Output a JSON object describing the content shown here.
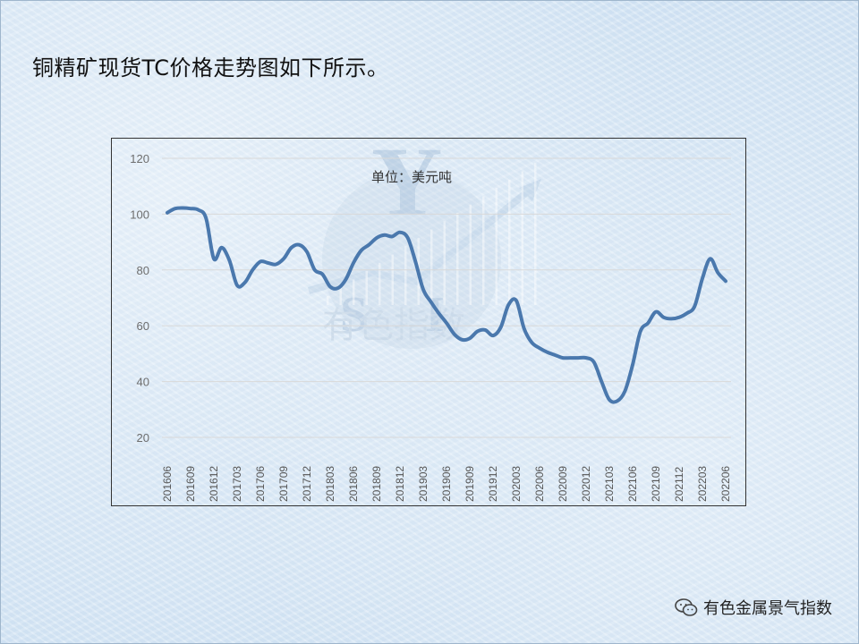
{
  "heading": "铜精矿现货TC价格走势图如下所示。",
  "footer": {
    "text": "有色金属景气指数",
    "icon": "wechat-icon"
  },
  "watermark": {
    "logo": "YSI",
    "text": "有色指数"
  },
  "colors": {
    "line": "#4a78ad",
    "grid": "#d9d9d9",
    "background": "#d6e6f5"
  },
  "chart_data": {
    "type": "line",
    "title": "",
    "unit_label": "单位：美元吨",
    "xlabel": "",
    "ylabel": "",
    "ylim": [
      20,
      120
    ],
    "yticks": [
      20,
      40,
      60,
      80,
      100,
      120
    ],
    "grid": true,
    "x_tick_labels": [
      "201606",
      "201609",
      "201612",
      "201703",
      "201706",
      "201709",
      "201712",
      "201803",
      "201806",
      "201809",
      "201812",
      "201903",
      "201906",
      "201909",
      "201912",
      "202003",
      "202006",
      "202009",
      "202012",
      "202103",
      "202106",
      "202109",
      "202112",
      "202203",
      "202206"
    ],
    "series": [
      {
        "values": [
          100.5,
          102.0,
          102.2,
          102.0,
          101.5,
          98.5,
          84.0,
          88.0,
          83.5,
          74.5,
          75.5,
          80.0,
          83.0,
          82.5,
          82.0,
          84.0,
          88.0,
          89.0,
          86.5,
          80.0,
          78.5,
          74.0,
          73.5,
          76.5,
          82.5,
          87.0,
          89.0,
          91.5,
          92.5,
          92.0,
          93.5,
          91.5,
          83.0,
          73.0,
          68.5,
          64.5,
          61.0,
          57.0,
          55.0,
          55.5,
          58.0,
          58.5,
          56.5,
          59.5,
          67.5,
          69.0,
          59.0,
          54.0,
          52.0,
          50.5,
          49.5,
          48.5,
          48.5,
          48.5,
          48.5,
          47.0,
          40.0,
          33.5,
          33.0,
          36.5,
          46.0,
          58.0,
          61.0,
          65.0,
          63.0,
          62.5,
          63.0,
          64.5,
          67.0,
          77.0,
          84.0,
          79.0,
          76.0
        ]
      }
    ]
  }
}
